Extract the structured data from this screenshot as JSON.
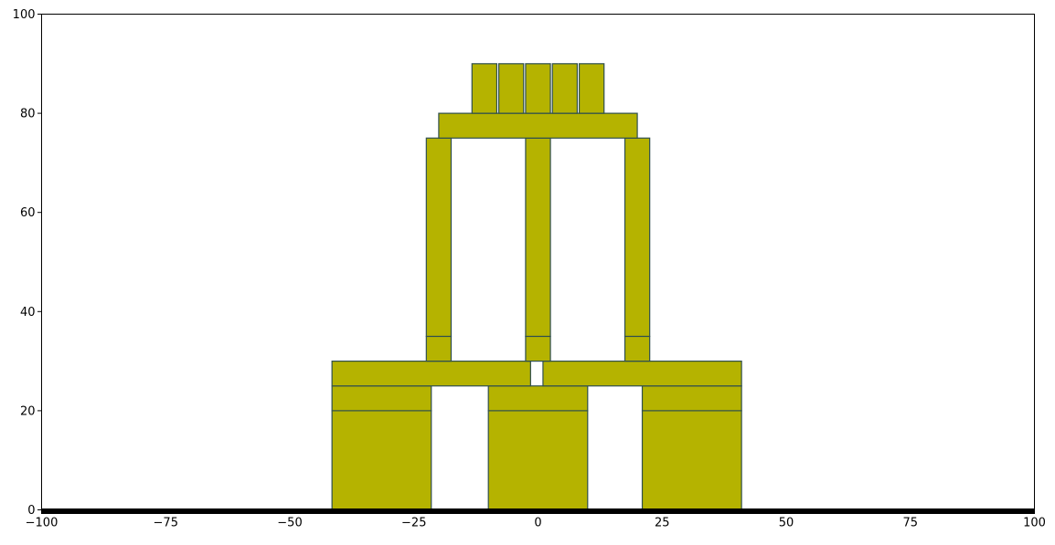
{
  "chart_data": {
    "type": "rectangles",
    "xlim": [
      -100,
      100
    ],
    "ylim": [
      0,
      100
    ],
    "x_ticks": [
      -100,
      -75,
      -50,
      -25,
      0,
      25,
      50,
      75,
      100
    ],
    "x_tick_labels": [
      "−100",
      "−75",
      "−50",
      "−25",
      "0",
      "25",
      "50",
      "75",
      "100"
    ],
    "y_ticks": [
      0,
      20,
      40,
      60,
      80,
      100
    ],
    "y_tick_labels": [
      "0",
      "20",
      "40",
      "60",
      "80",
      "100"
    ],
    "grid": false,
    "block_fill": "#b5b300",
    "block_edge": "#2f4f4f",
    "ground_color": "#000000",
    "ground": {
      "x0": -100,
      "x1": 100,
      "y": 0
    },
    "blocks": [
      {
        "x": -41.5,
        "y": 0,
        "w": 20,
        "h": 20
      },
      {
        "x": -10,
        "y": 0,
        "w": 20,
        "h": 20
      },
      {
        "x": 21,
        "y": 0,
        "w": 20,
        "h": 20
      },
      {
        "x": -41.5,
        "y": 20,
        "w": 20,
        "h": 5
      },
      {
        "x": -10,
        "y": 20,
        "w": 20,
        "h": 5
      },
      {
        "x": 21,
        "y": 20,
        "w": 20,
        "h": 5
      },
      {
        "x": -41.5,
        "y": 25,
        "w": 40,
        "h": 5
      },
      {
        "x": 1,
        "y": 25,
        "w": 40,
        "h": 5
      },
      {
        "x": -22.5,
        "y": 30,
        "w": 5,
        "h": 5
      },
      {
        "x": -2.5,
        "y": 30,
        "w": 5,
        "h": 5
      },
      {
        "x": 17.5,
        "y": 30,
        "w": 5,
        "h": 5
      },
      {
        "x": -22.5,
        "y": 35,
        "w": 5,
        "h": 40
      },
      {
        "x": -2.5,
        "y": 35,
        "w": 5,
        "h": 40
      },
      {
        "x": 17.5,
        "y": 35,
        "w": 5,
        "h": 40
      },
      {
        "x": -20,
        "y": 75,
        "w": 40,
        "h": 5
      },
      {
        "x": -13.3,
        "y": 80,
        "w": 5,
        "h": 10
      },
      {
        "x": -7.9,
        "y": 80,
        "w": 5,
        "h": 10
      },
      {
        "x": -2.5,
        "y": 80,
        "w": 5,
        "h": 10
      },
      {
        "x": 2.9,
        "y": 80,
        "w": 5,
        "h": 10
      },
      {
        "x": 8.3,
        "y": 80,
        "w": 5,
        "h": 10
      }
    ]
  }
}
